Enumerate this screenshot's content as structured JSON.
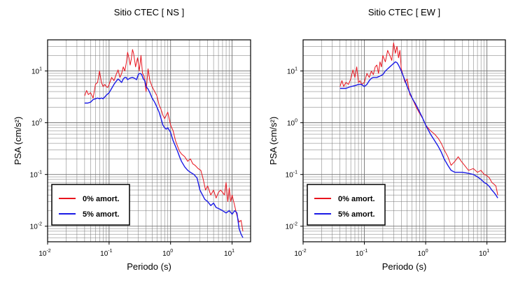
{
  "colors": {
    "series_0": "#e8141e",
    "series_5": "#1a1ae6",
    "frame": "#000000",
    "grid": "#000000"
  },
  "chart_data": [
    {
      "type": "line",
      "title": "Sitio CTEC [ NS ]",
      "xlabel": "Periodo (s)",
      "ylabel": "PSA (cm/s²)",
      "xscale": "log",
      "yscale": "log",
      "xlim": [
        0.01,
        20
      ],
      "ylim": [
        0.005,
        40
      ],
      "grid": true,
      "legend_position": "bottom-left",
      "xticks": [
        {
          "value": 0.01,
          "base": "10",
          "exp": "-2"
        },
        {
          "value": 0.1,
          "base": "10",
          "exp": "-1"
        },
        {
          "value": 1,
          "base": "10",
          "exp": "0"
        },
        {
          "value": 10,
          "base": "10",
          "exp": "1"
        }
      ],
      "yticks": [
        {
          "value": 0.01,
          "base": "10",
          "exp": "-2"
        },
        {
          "value": 0.1,
          "base": "10",
          "exp": "-1"
        },
        {
          "value": 1,
          "base": "10",
          "exp": "0"
        },
        {
          "value": 10,
          "base": "10",
          "exp": "1"
        }
      ],
      "series": [
        {
          "name": "0% amort.",
          "color": "#e8141e",
          "x": [
            0.04,
            0.043,
            0.046,
            0.05,
            0.055,
            0.06,
            0.065,
            0.07,
            0.075,
            0.08,
            0.085,
            0.09,
            0.095,
            0.1,
            0.11,
            0.12,
            0.13,
            0.14,
            0.15,
            0.16,
            0.17,
            0.18,
            0.19,
            0.2,
            0.21,
            0.22,
            0.23,
            0.24,
            0.25,
            0.27,
            0.29,
            0.31,
            0.33,
            0.35,
            0.37,
            0.4,
            0.43,
            0.46,
            0.5,
            0.55,
            0.6,
            0.65,
            0.7,
            0.75,
            0.8,
            0.9,
            1.0,
            1.1,
            1.2,
            1.3,
            1.4,
            1.5,
            1.7,
            1.9,
            2.1,
            2.3,
            2.5,
            2.8,
            3.1,
            3.4,
            3.7,
            4.0,
            4.5,
            5.0,
            5.5,
            6.0,
            6.5,
            7.0,
            7.5,
            8.0,
            8.5,
            9.0,
            9.5,
            10,
            11,
            12,
            13,
            14,
            15
          ],
          "y": [
            3.3,
            4.2,
            3.5,
            3.8,
            3.0,
            5.5,
            6.0,
            10.0,
            6.0,
            5.0,
            5.5,
            5.0,
            4.8,
            5.5,
            7.5,
            6.5,
            8.5,
            10.5,
            7.5,
            9.0,
            12.0,
            10.0,
            14.0,
            23.0,
            18.0,
            13.0,
            17.0,
            26.0,
            22.0,
            12.0,
            18.0,
            10.0,
            20.0,
            9.0,
            8.0,
            4.0,
            11.0,
            6.5,
            5.0,
            4.0,
            3.3,
            2.2,
            1.8,
            1.4,
            1.2,
            1.6,
            0.9,
            0.7,
            0.45,
            0.35,
            0.28,
            0.25,
            0.22,
            0.18,
            0.2,
            0.16,
            0.15,
            0.13,
            0.12,
            0.08,
            0.05,
            0.06,
            0.04,
            0.05,
            0.035,
            0.045,
            0.05,
            0.045,
            0.04,
            0.07,
            0.03,
            0.055,
            0.03,
            0.04,
            0.025,
            0.016,
            0.012,
            0.013,
            0.008
          ]
        },
        {
          "name": "5% amort.",
          "color": "#1a1ae6",
          "x": [
            0.04,
            0.045,
            0.05,
            0.055,
            0.06,
            0.065,
            0.07,
            0.075,
            0.08,
            0.09,
            0.1,
            0.11,
            0.12,
            0.13,
            0.14,
            0.15,
            0.16,
            0.17,
            0.18,
            0.19,
            0.2,
            0.22,
            0.24,
            0.26,
            0.28,
            0.3,
            0.32,
            0.34,
            0.36,
            0.38,
            0.4,
            0.43,
            0.46,
            0.5,
            0.55,
            0.6,
            0.65,
            0.7,
            0.75,
            0.8,
            0.85,
            0.9,
            1.0,
            1.1,
            1.2,
            1.3,
            1.4,
            1.5,
            1.7,
            1.9,
            2.1,
            2.4,
            2.7,
            3.0,
            3.3,
            3.6,
            4.0,
            4.5,
            5.0,
            5.5,
            6.0,
            7.0,
            8.0,
            9.0,
            10,
            11,
            12,
            13,
            14,
            15
          ],
          "y": [
            2.4,
            2.4,
            2.5,
            2.8,
            2.9,
            3.0,
            2.9,
            3.0,
            2.9,
            3.4,
            3.8,
            4.6,
            5.5,
            6.3,
            7.0,
            6.5,
            6.0,
            7.0,
            7.5,
            7.5,
            6.8,
            7.3,
            7.5,
            7.2,
            6.8,
            8.7,
            9.0,
            8.5,
            7.0,
            6.5,
            5.0,
            4.5,
            3.8,
            3.0,
            2.5,
            2.0,
            1.6,
            1.2,
            0.9,
            0.8,
            0.75,
            0.8,
            0.65,
            0.45,
            0.35,
            0.28,
            0.22,
            0.18,
            0.14,
            0.12,
            0.11,
            0.1,
            0.085,
            0.05,
            0.04,
            0.033,
            0.03,
            0.025,
            0.028,
            0.023,
            0.022,
            0.02,
            0.018,
            0.02,
            0.017,
            0.02,
            0.018,
            0.009,
            0.007,
            0.006
          ]
        }
      ]
    },
    {
      "type": "line",
      "title": "Sitio CTEC [ EW ]",
      "xlabel": "Periodo (s)",
      "ylabel": "PSA (cm/s²)",
      "xscale": "log",
      "yscale": "log",
      "xlim": [
        0.01,
        20
      ],
      "ylim": [
        0.005,
        40
      ],
      "grid": true,
      "legend_position": "bottom-left",
      "xticks": [
        {
          "value": 0.01,
          "base": "10",
          "exp": "-2"
        },
        {
          "value": 0.1,
          "base": "10",
          "exp": "-1"
        },
        {
          "value": 1,
          "base": "10",
          "exp": "0"
        },
        {
          "value": 10,
          "base": "10",
          "exp": "1"
        }
      ],
      "yticks": [
        {
          "value": 0.01,
          "base": "10",
          "exp": "-2"
        },
        {
          "value": 0.1,
          "base": "10",
          "exp": "-1"
        },
        {
          "value": 1,
          "base": "10",
          "exp": "0"
        },
        {
          "value": 10,
          "base": "10",
          "exp": "1"
        }
      ],
      "series": [
        {
          "name": "0% amort.",
          "color": "#e8141e",
          "x": [
            0.04,
            0.043,
            0.046,
            0.05,
            0.055,
            0.06,
            0.065,
            0.07,
            0.075,
            0.08,
            0.085,
            0.09,
            0.1,
            0.11,
            0.12,
            0.13,
            0.14,
            0.15,
            0.16,
            0.17,
            0.18,
            0.19,
            0.2,
            0.22,
            0.24,
            0.26,
            0.28,
            0.3,
            0.32,
            0.34,
            0.36,
            0.38,
            0.4,
            0.43,
            0.46,
            0.5,
            0.55,
            0.6,
            0.7,
            0.8,
            0.9,
            1.0,
            1.2,
            1.4,
            1.6,
            1.8,
            2.0,
            2.3,
            2.6,
            3.0,
            3.4,
            3.8,
            4.3,
            5.0,
            6.0,
            7.0,
            8.0,
            9.0,
            10,
            11,
            12,
            13,
            14,
            15
          ],
          "y": [
            5.0,
            6.5,
            5.0,
            6.0,
            5.5,
            7.0,
            10.5,
            7.5,
            12.0,
            6.0,
            6.5,
            5.5,
            6.0,
            9.0,
            7.5,
            10.0,
            8.5,
            12.0,
            13.0,
            9.0,
            15.0,
            12.0,
            20.0,
            15.0,
            25.0,
            20.0,
            16.0,
            35.0,
            22.0,
            30.0,
            18.0,
            25.0,
            11.0,
            8.0,
            6.0,
            7.0,
            3.5,
            3.0,
            2.0,
            1.5,
            1.2,
            0.9,
            0.7,
            0.6,
            0.5,
            0.4,
            0.3,
            0.22,
            0.15,
            0.18,
            0.22,
            0.18,
            0.15,
            0.12,
            0.13,
            0.11,
            0.12,
            0.1,
            0.095,
            0.085,
            0.07,
            0.065,
            0.06,
            0.04
          ]
        },
        {
          "name": "5% amort.",
          "color": "#1a1ae6",
          "x": [
            0.04,
            0.05,
            0.06,
            0.07,
            0.08,
            0.09,
            0.1,
            0.11,
            0.12,
            0.13,
            0.14,
            0.15,
            0.16,
            0.18,
            0.2,
            0.22,
            0.24,
            0.26,
            0.28,
            0.3,
            0.32,
            0.34,
            0.36,
            0.4,
            0.45,
            0.5,
            0.6,
            0.7,
            0.8,
            0.9,
            1.0,
            1.2,
            1.4,
            1.6,
            1.8,
            2.0,
            2.3,
            2.6,
            3.0,
            3.5,
            4.0,
            5.0,
            6.0,
            7.0,
            8.0,
            9.0,
            10,
            11,
            12,
            13,
            14,
            15
          ],
          "y": [
            4.6,
            4.6,
            5.0,
            5.2,
            5.5,
            5.5,
            5.0,
            5.5,
            6.5,
            7.2,
            7.5,
            7.5,
            7.5,
            8.0,
            8.5,
            10.0,
            11.0,
            12.0,
            13.0,
            14.0,
            15.0,
            14.5,
            13.0,
            10.0,
            7.0,
            5.0,
            3.0,
            2.2,
            1.6,
            1.2,
            0.9,
            0.6,
            0.45,
            0.35,
            0.27,
            0.2,
            0.15,
            0.12,
            0.11,
            0.11,
            0.11,
            0.105,
            0.1,
            0.09,
            0.08,
            0.07,
            0.065,
            0.058,
            0.05,
            0.045,
            0.04,
            0.035
          ]
        }
      ]
    }
  ]
}
